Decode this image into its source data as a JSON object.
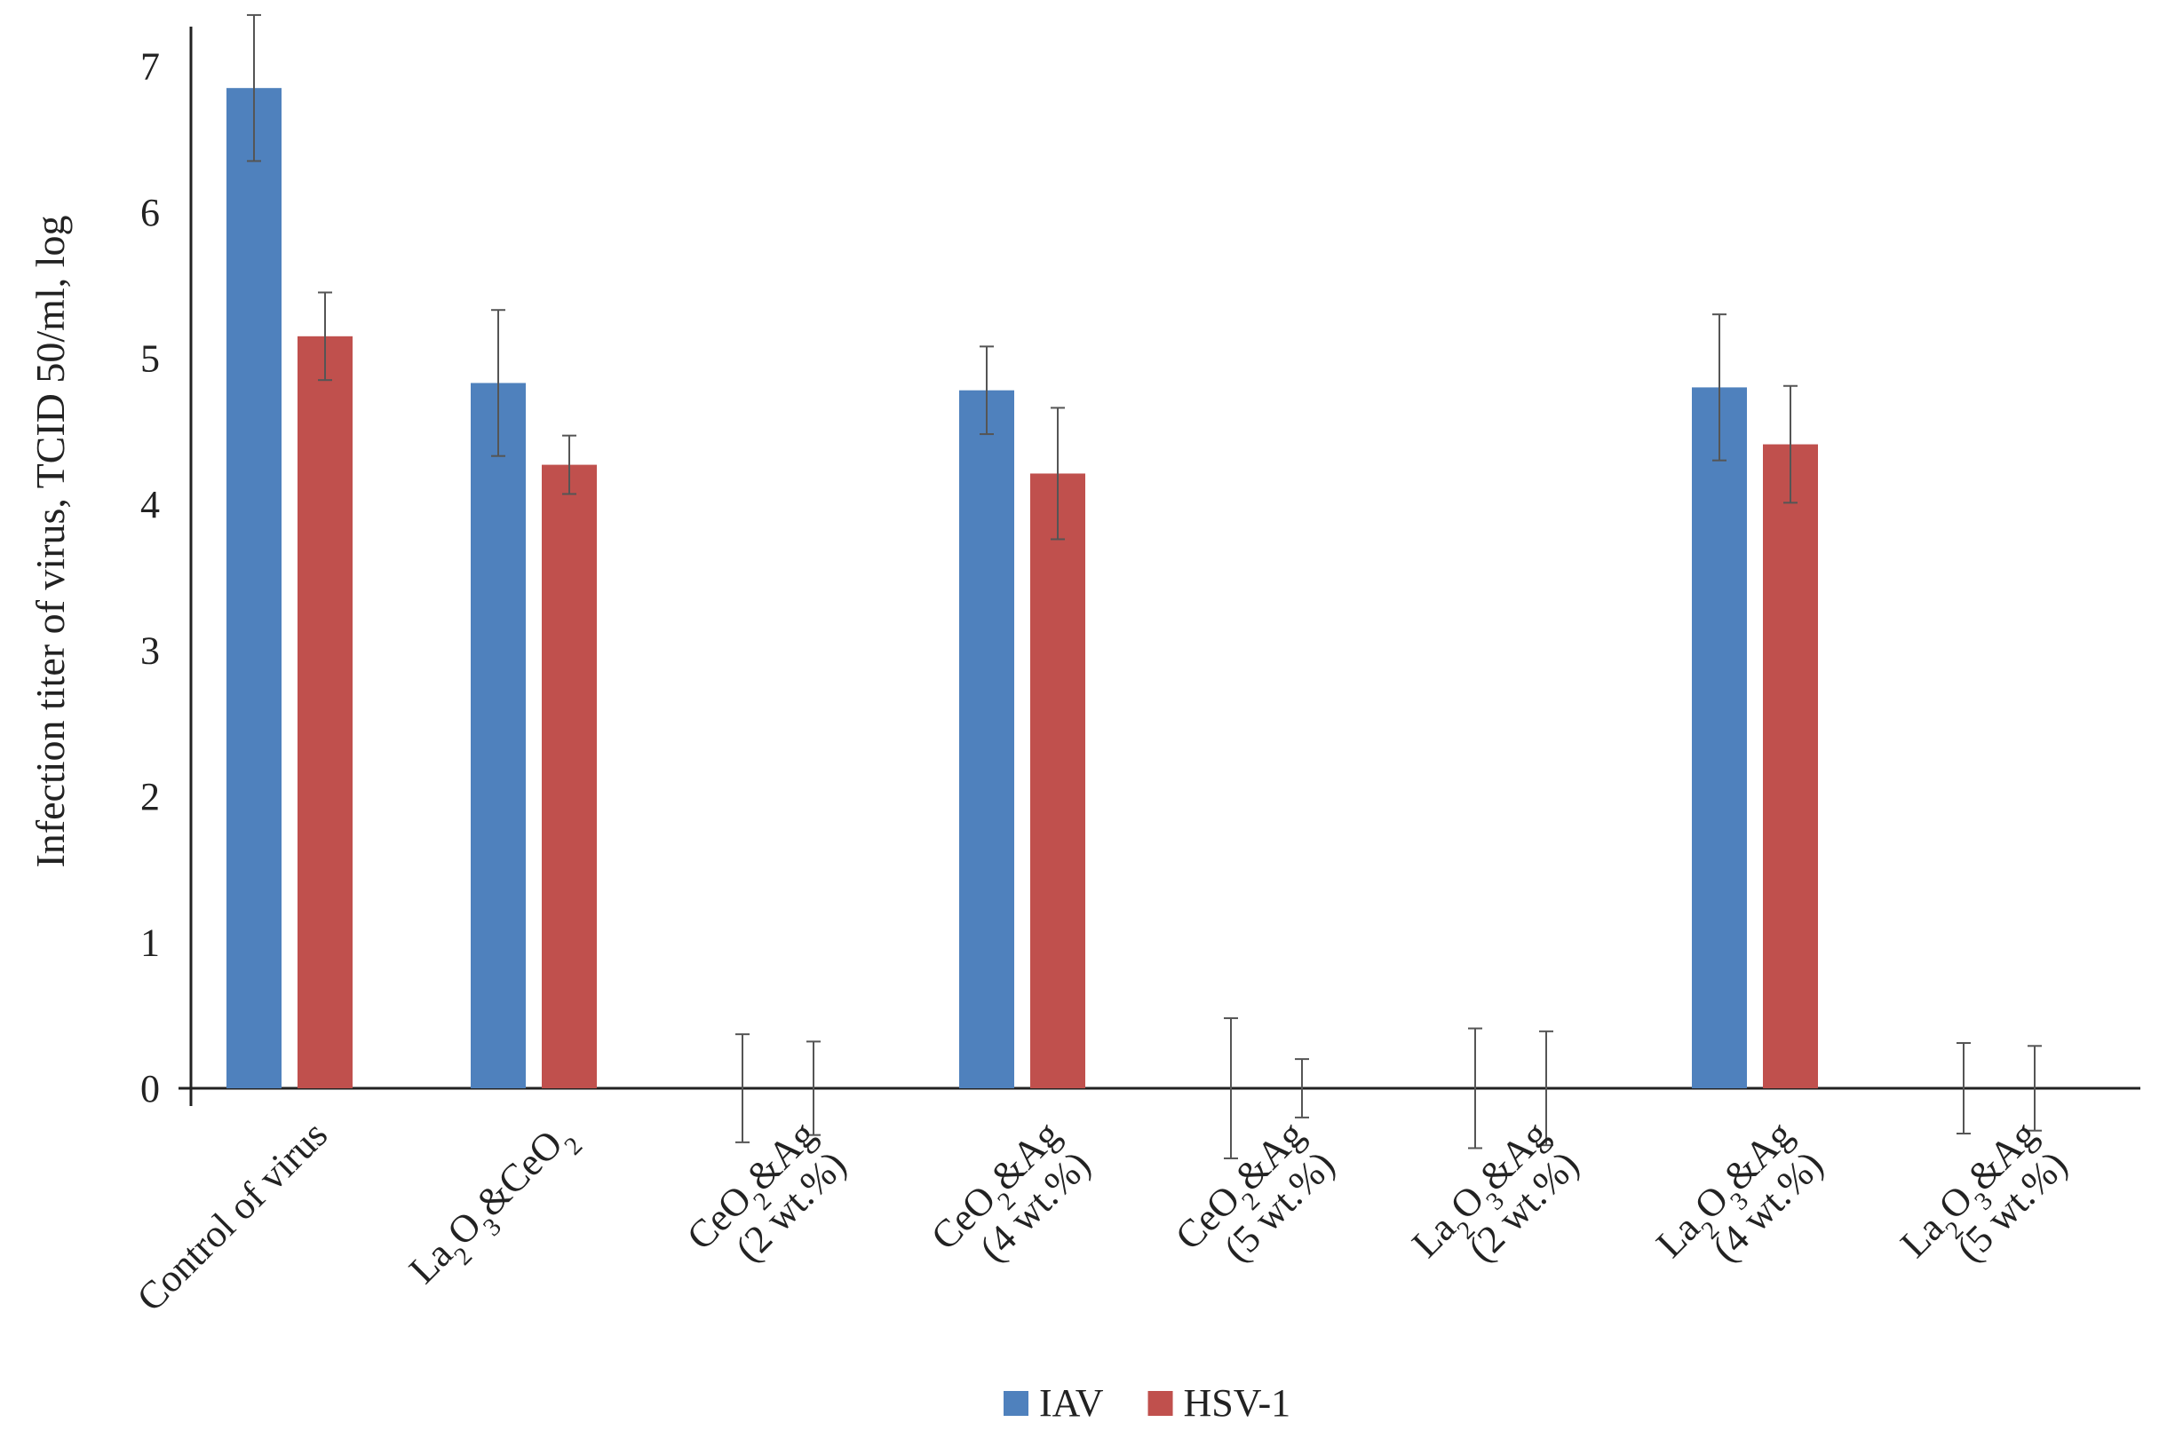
{
  "chart_data": {
    "type": "bar",
    "title": "",
    "xlabel": "",
    "ylabel": "Infection titer of virus, TCID 50/ml, log",
    "ylim": [
      0,
      7.5
    ],
    "yticks": [
      "0",
      "1",
      "2",
      "3",
      "4",
      "5",
      "6",
      "7"
    ],
    "categories": [
      {
        "lines": [
          "Control of virus"
        ]
      },
      {
        "lines": [
          "La{2}O{3}&CeO{2}"
        ]
      },
      {
        "lines": [
          "CeO{2}&Ag",
          "(2 wt.%)"
        ]
      },
      {
        "lines": [
          "CeO{2}&Ag",
          "(4 wt.%)"
        ]
      },
      {
        "lines": [
          "CeO{2}&Ag",
          "(5 wt.%)"
        ]
      },
      {
        "lines": [
          "La{2}O{3}&Ag",
          "(2 wt.%)"
        ]
      },
      {
        "lines": [
          "La{2}O{3}&Ag",
          "(4 wt.%)"
        ]
      },
      {
        "lines": [
          "La{2}O{3}&Ag",
          "(5 wt.%)"
        ]
      }
    ],
    "series": [
      {
        "name": "IAV",
        "color": "#4F81BD",
        "values": [
          6.85,
          4.83,
          0,
          4.78,
          0,
          0,
          4.8,
          0
        ],
        "errors": [
          0.5,
          0.5,
          0.37,
          0.3,
          0.48,
          0.41,
          0.5,
          0.31
        ]
      },
      {
        "name": "HSV-1",
        "color": "#C0504D",
        "values": [
          5.15,
          4.27,
          0,
          4.21,
          0,
          0,
          4.41,
          0
        ],
        "errors": [
          0.3,
          0.2,
          0.32,
          0.45,
          0.2,
          0.39,
          0.4,
          0.29
        ]
      }
    ],
    "legend_position": "bottom-center",
    "grid": false
  }
}
